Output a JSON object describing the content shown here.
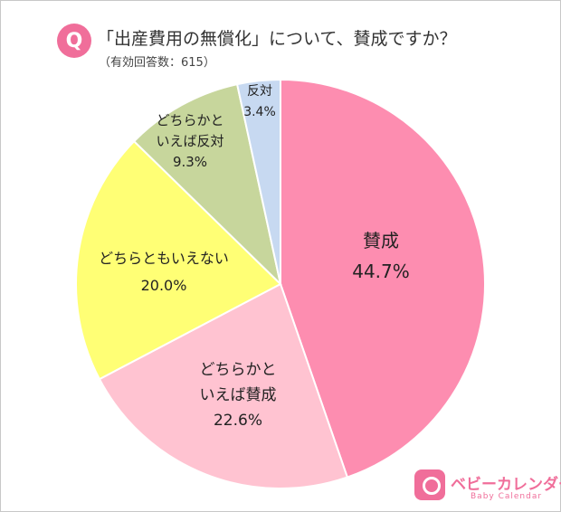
{
  "header": {
    "badge": "Q",
    "title": "「出産費用の無償化」について、賛成ですか？",
    "subtitle": "（有効回答数：615）"
  },
  "chart_data": {
    "type": "pie",
    "title": "「出産費用の無償化」について、賛成ですか？",
    "start_angle_deg": 0,
    "direction": "clockwise",
    "slices": [
      {
        "label_lines": [
          "賛成"
        ],
        "value": 44.7,
        "value_text": "44.7%",
        "color": "#fd8db0"
      },
      {
        "label_lines": [
          "どちらかと",
          "いえば賛成"
        ],
        "value": 22.6,
        "value_text": "22.6%",
        "color": "#ffc3d1"
      },
      {
        "label_lines": [
          "どちらともいえない"
        ],
        "value": 20.0,
        "value_text": "20.0%",
        "color": "#ffff75"
      },
      {
        "label_lines": [
          "どちらかと",
          "いえば反対"
        ],
        "value": 9.3,
        "value_text": "9.3%",
        "color": "#c7d69c"
      },
      {
        "label_lines": [
          "反対"
        ],
        "value": 3.4,
        "value_text": "3.4%",
        "color": "#c7d9f1"
      }
    ]
  },
  "brand": {
    "name": "ベビーカレンダー",
    "sub": "Baby Calendar"
  }
}
